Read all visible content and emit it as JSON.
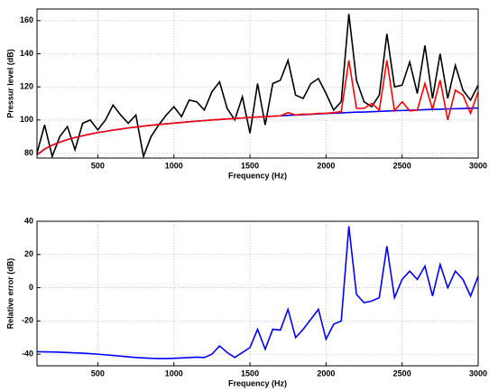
{
  "chart_data": [
    {
      "type": "line",
      "xlabel": "Frequency (Hz)",
      "ylabel": "Pressur level (dB)",
      "x": [
        100,
        150,
        200,
        250,
        300,
        350,
        400,
        450,
        500,
        550,
        600,
        650,
        700,
        750,
        800,
        850,
        900,
        950,
        1000,
        1050,
        1100,
        1150,
        1200,
        1250,
        1300,
        1350,
        1400,
        1450,
        1500,
        1550,
        1600,
        1650,
        1700,
        1750,
        1800,
        1850,
        1900,
        1950,
        2000,
        2050,
        2100,
        2150,
        2200,
        2250,
        2300,
        2350,
        2400,
        2450,
        2500,
        2550,
        2600,
        2650,
        2700,
        2750,
        2800,
        2850,
        2900,
        2950,
        3000
      ],
      "series": [
        {
          "color": "#000000",
          "values": [
            80,
            97,
            78,
            90,
            96,
            82,
            98,
            100,
            94,
            100,
            109,
            103,
            98,
            103,
            78,
            90,
            97,
            103,
            108,
            102,
            112,
            111,
            106,
            117,
            123,
            107,
            100,
            114,
            92,
            122,
            97,
            122,
            124,
            136,
            115,
            113,
            122,
            125,
            116,
            106,
            111,
            164,
            124,
            111,
            108,
            115,
            152,
            120,
            121,
            135,
            116,
            145,
            113,
            140,
            113,
            133,
            118,
            112,
            121
          ]
        },
        {
          "color": "#0000ff",
          "values": [
            79,
            82.4,
            84.8,
            86.6,
            88.1,
            89.4,
            90.5,
            91.5,
            92.4,
            93.1,
            93.9,
            94.5,
            95.2,
            95.7,
            96.3,
            96.8,
            97.2,
            97.7,
            98.1,
            98.5,
            98.9,
            99.3,
            99.6,
            100,
            100.3,
            100.6,
            100.9,
            101.2,
            101.5,
            101.8,
            102,
            102.3,
            102.5,
            102.8,
            103,
            103.2,
            103.4,
            103.7,
            103.9,
            104.1,
            104.3,
            104.5,
            104.7,
            104.8,
            105,
            105.2,
            105.4,
            105.6,
            105.7,
            105.9,
            106,
            106.2,
            106.4,
            106.5,
            106.7,
            106.8,
            106.9,
            107.1,
            107.2
          ]
        },
        {
          "color": "#ff0000",
          "values": [
            79,
            82.4,
            84.8,
            86.6,
            88.1,
            89.4,
            90.5,
            91.5,
            92.4,
            93.1,
            93.9,
            94.5,
            95.2,
            95.7,
            96.3,
            96.8,
            97.2,
            97.7,
            98.1,
            98.5,
            98.9,
            99.3,
            99.6,
            100,
            100.3,
            100.6,
            100.9,
            101.2,
            101.5,
            101.8,
            102,
            102.3,
            102.5,
            104.5,
            103,
            103.5,
            103.5,
            104,
            104,
            104.5,
            105,
            136,
            107,
            107,
            110,
            106,
            136,
            105.5,
            111,
            105.5,
            106,
            122,
            106.5,
            124,
            100,
            118,
            115,
            104,
            117
          ]
        }
      ],
      "xlim": [
        100,
        3000
      ],
      "xticks": [
        500,
        1000,
        1500,
        2000,
        2500,
        3000
      ],
      "ylim": [
        77,
        167
      ],
      "yticks": [
        80,
        100,
        120,
        140,
        160
      ],
      "grid": true
    },
    {
      "type": "line",
      "xlabel": "Frequency (Hz)",
      "ylabel": "Relative error (dB)",
      "x": [
        100,
        150,
        200,
        250,
        300,
        350,
        400,
        450,
        500,
        550,
        600,
        650,
        700,
        750,
        800,
        850,
        900,
        950,
        1000,
        1050,
        1100,
        1150,
        1200,
        1250,
        1300,
        1350,
        1400,
        1450,
        1500,
        1550,
        1600,
        1650,
        1700,
        1750,
        1800,
        1850,
        1900,
        1950,
        2000,
        2050,
        2100,
        2150,
        2200,
        2250,
        2300,
        2350,
        2400,
        2450,
        2500,
        2550,
        2600,
        2650,
        2700,
        2750,
        2800,
        2850,
        2900,
        2950,
        3000
      ],
      "series": [
        {
          "color": "#0000ff",
          "values": [
            -38.5,
            -38.6,
            -38.7,
            -38.8,
            -39,
            -39.2,
            -39.4,
            -39.7,
            -40,
            -40.4,
            -40.8,
            -41.2,
            -41.6,
            -42,
            -42.3,
            -42.5,
            -42.6,
            -42.6,
            -42.5,
            -42.3,
            -42,
            -41.8,
            -42,
            -40,
            -35,
            -39,
            -42,
            -39,
            -36,
            -25,
            -37,
            -25,
            -25.5,
            -13,
            -30,
            -25,
            -19,
            -13,
            -31,
            -22,
            -20,
            37,
            -4,
            -9,
            -8,
            -6,
            25,
            -6,
            5,
            10,
            5,
            13,
            -5,
            14,
            0,
            10,
            5,
            -5,
            7
          ]
        }
      ],
      "xlim": [
        100,
        3000
      ],
      "xticks": [
        500,
        1000,
        1500,
        2000,
        2500,
        3000
      ],
      "ylim": [
        -47,
        40
      ],
      "yticks": [
        -40,
        -20,
        0,
        20,
        40
      ],
      "grid": true
    }
  ]
}
